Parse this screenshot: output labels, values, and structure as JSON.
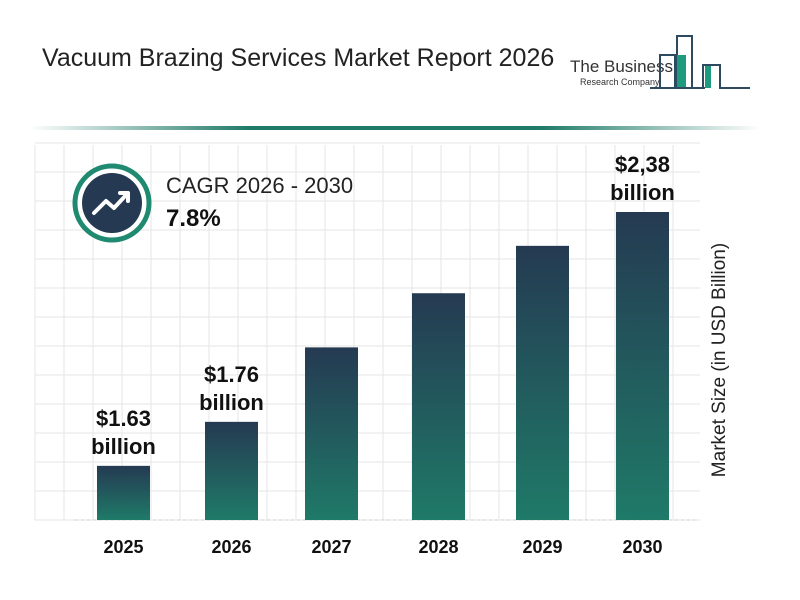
{
  "header": {
    "title": "Vacuum Brazing Services Market Report 2026",
    "logo_line1": "The Business",
    "logo_line2": "Research Company"
  },
  "cagr": {
    "label": "CAGR 2026 - 2030",
    "value": "7.8%",
    "icon": "trending-up-icon"
  },
  "colors": {
    "bar_top": "#253a52",
    "bar_bottom": "#1f7a68",
    "accent": "#1f8a70"
  },
  "chart_data": {
    "type": "bar",
    "categories": [
      "2025",
      "2026",
      "2027",
      "2028",
      "2029",
      "2030"
    ],
    "values": [
      1.63,
      1.76,
      1.98,
      2.14,
      2.28,
      2.38
    ],
    "data_labels": [
      [
        "$1.63",
        "billion"
      ],
      [
        "$1.76",
        "billion"
      ],
      null,
      null,
      null,
      [
        "$2,38",
        "billion"
      ]
    ],
    "title": "",
    "xlabel": "",
    "ylabel": "Market Size (in USD Billion)",
    "ylim": [
      1.47,
      2.4
    ],
    "grid": true,
    "legend": "none"
  }
}
